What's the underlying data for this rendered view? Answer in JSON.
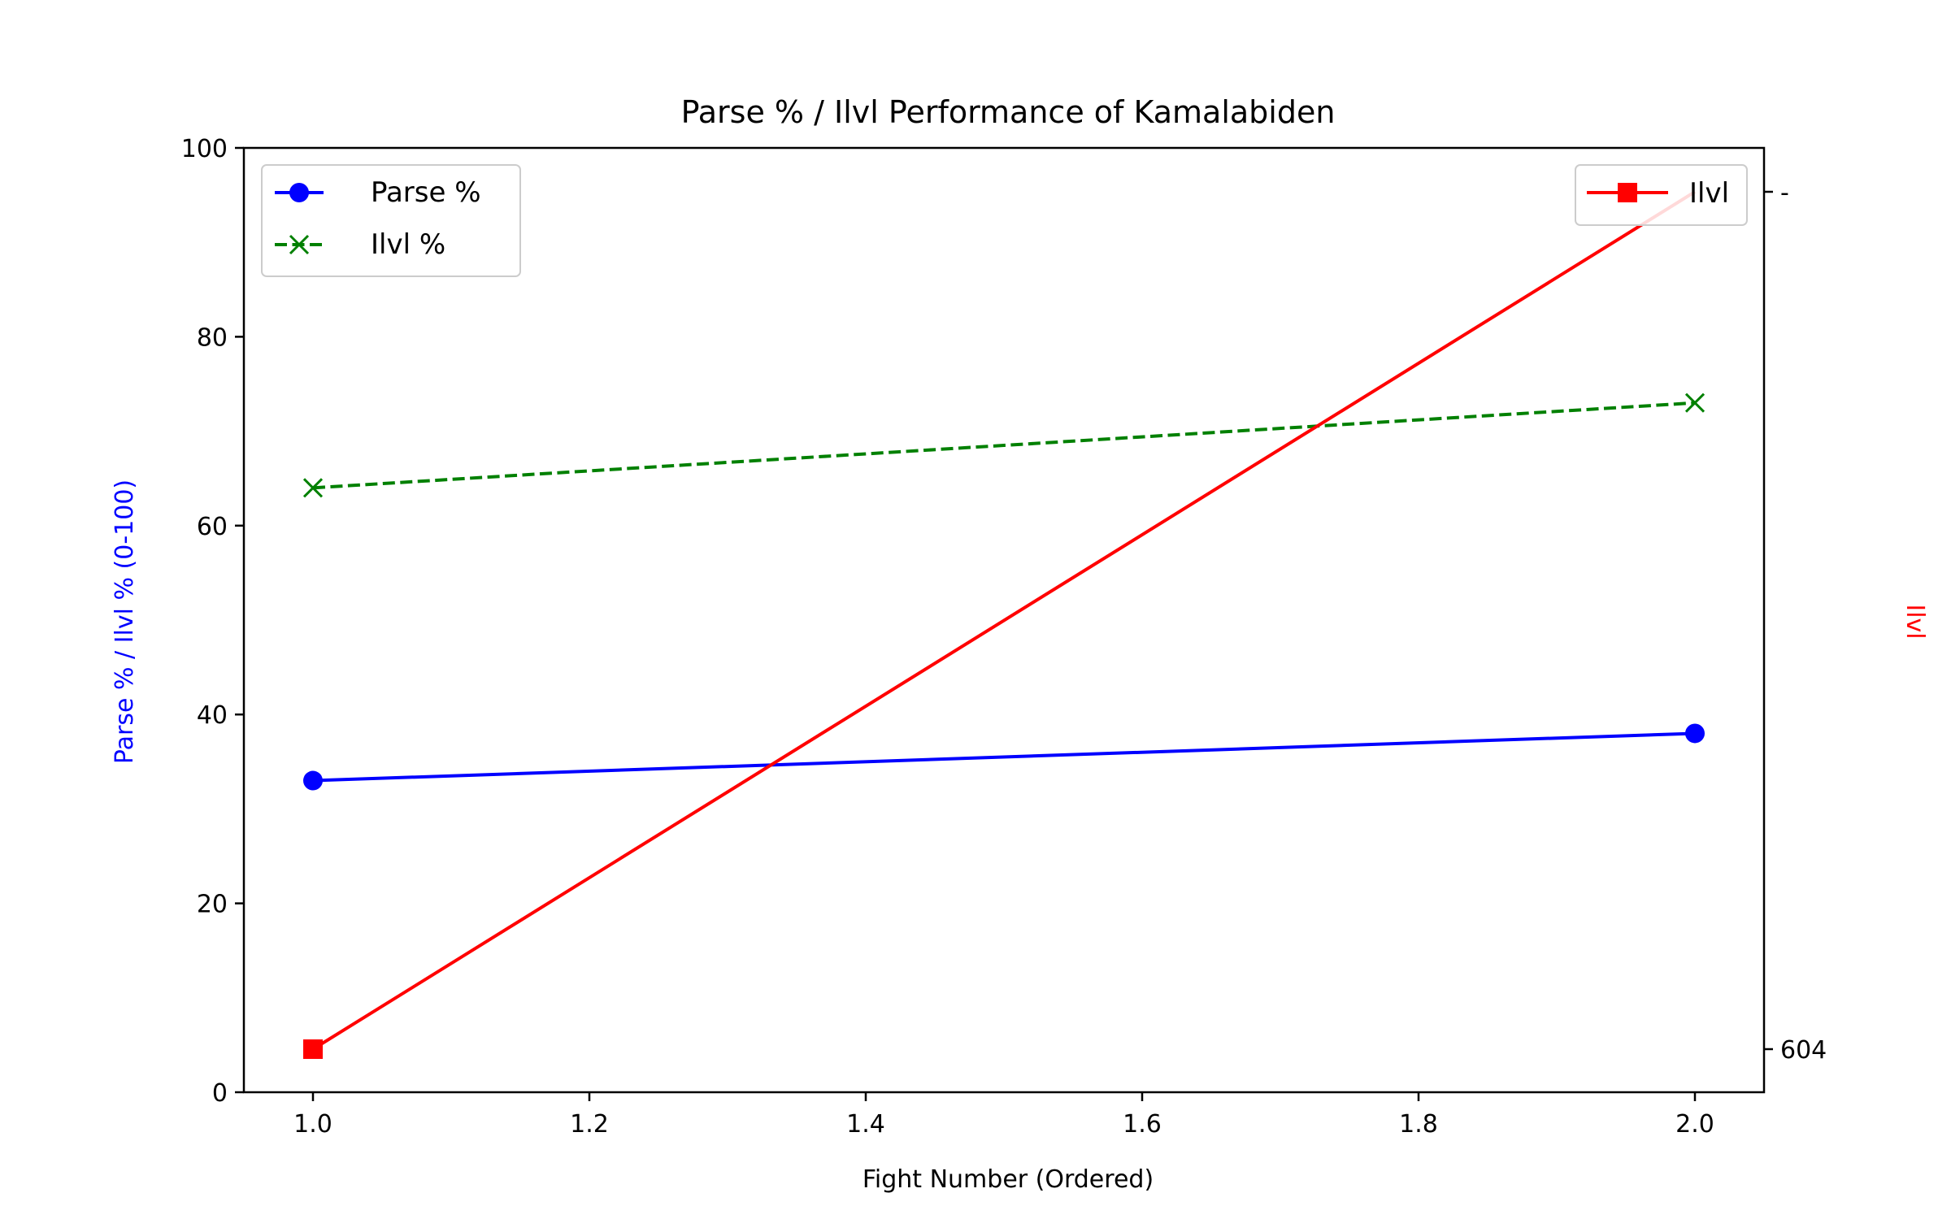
{
  "chart_data": {
    "type": "line",
    "title": "Parse % / Ilvl Performance of Kamalabiden",
    "xlabel": "Fight Number (Ordered)",
    "ylabel_left": "Parse % / Ilvl % (0-100)",
    "ylabel_right": "Ilvl",
    "x": [
      1.0,
      2.0
    ],
    "xlim": [
      0.95,
      2.05
    ],
    "ylim_left": [
      0,
      100
    ],
    "x_ticks": [
      "1.0",
      "1.2",
      "1.4",
      "1.6",
      "1.8",
      "2.0"
    ],
    "y_ticks_left": [
      "0",
      "20",
      "40",
      "60",
      "80",
      "100"
    ],
    "y_ticks_right": [
      "604",
      "-"
    ],
    "series": [
      {
        "name": "Parse %",
        "axis": "left",
        "values": [
          33,
          38
        ],
        "color": "#0000ff",
        "marker": "circle",
        "dash": "solid"
      },
      {
        "name": "Ilvl %",
        "axis": "left",
        "values": [
          64,
          73
        ],
        "color": "#008000",
        "marker": "x",
        "dash": "dashed"
      },
      {
        "name": "Ilvl",
        "axis": "right",
        "values": [
          604,
          null
        ],
        "color": "#ff0000",
        "marker": "square",
        "dash": "solid"
      }
    ],
    "legend_left": "top-left",
    "legend_right": "top-right",
    "grid": false
  }
}
